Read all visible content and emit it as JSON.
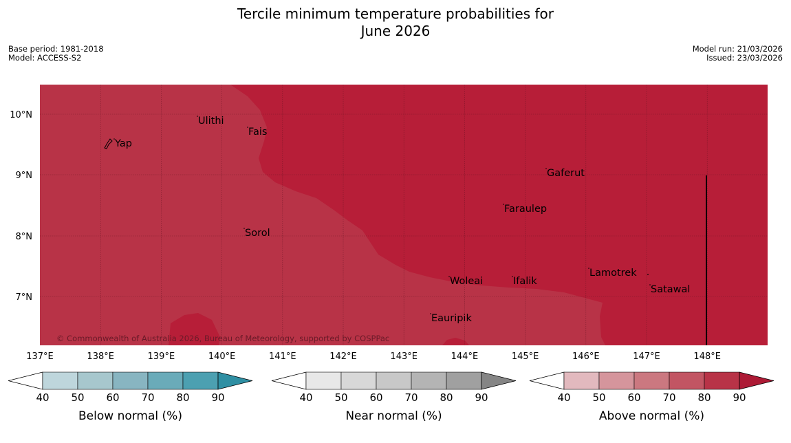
{
  "title_line1": "Tercile minimum temperature probabilities for",
  "title_line2": "June 2026",
  "base_period": "Base period: 1981-2018",
  "model": "Model: ACCESS-S2",
  "model_run": "Model run: 21/03/2026",
  "issued": "Issued: 23/03/2026",
  "copyright": "© Commonwealth of Australia 2026, Bureau of Meteorology, supported by COSPPac",
  "map": {
    "lon_labels": [
      "137°E",
      "138°E",
      "139°E",
      "140°E",
      "141°E",
      "142°E",
      "143°E",
      "144°E",
      "145°E",
      "146°E",
      "147°E",
      "148°E"
    ],
    "lat_labels": [
      "10°N",
      "9°N",
      "8°N",
      "7°N"
    ],
    "region_colors": {
      "above_80_90": "#b71e38",
      "above_70_80": "#b83347"
    },
    "places": [
      {
        "name": "Yap"
      },
      {
        "name": "Ulithi"
      },
      {
        "name": "Fais"
      },
      {
        "name": "Gaferut"
      },
      {
        "name": "Faraulep"
      },
      {
        "name": "Sorol"
      },
      {
        "name": "Woleai"
      },
      {
        "name": "Ifalik"
      },
      {
        "name": "Lamotrek"
      },
      {
        "name": "Satawal"
      },
      {
        "name": "Eauripik"
      }
    ]
  },
  "colorbars": [
    {
      "label": "Below normal (%)",
      "ticks": [
        "40",
        "50",
        "60",
        "70",
        "80",
        "90"
      ],
      "colors": [
        "#ffffff",
        "#bed6dc",
        "#a7c7cd",
        "#88b5c1",
        "#6aabb9",
        "#4ca0b1",
        "#2f8fa3"
      ]
    },
    {
      "label": "Near normal (%)",
      "ticks": [
        "40",
        "50",
        "60",
        "70",
        "80",
        "90"
      ],
      "colors": [
        "#ffffff",
        "#e8e8e8",
        "#d8d8d8",
        "#c8c8c8",
        "#b4b4b4",
        "#a0a0a0",
        "#858585"
      ]
    },
    {
      "label": "Above normal (%)",
      "ticks": [
        "40",
        "50",
        "60",
        "70",
        "80",
        "90"
      ],
      "colors": [
        "#ffffff",
        "#e2b9be",
        "#d5959c",
        "#cb7880",
        "#c25563",
        "#b83347",
        "#ad1a35"
      ]
    }
  ]
}
